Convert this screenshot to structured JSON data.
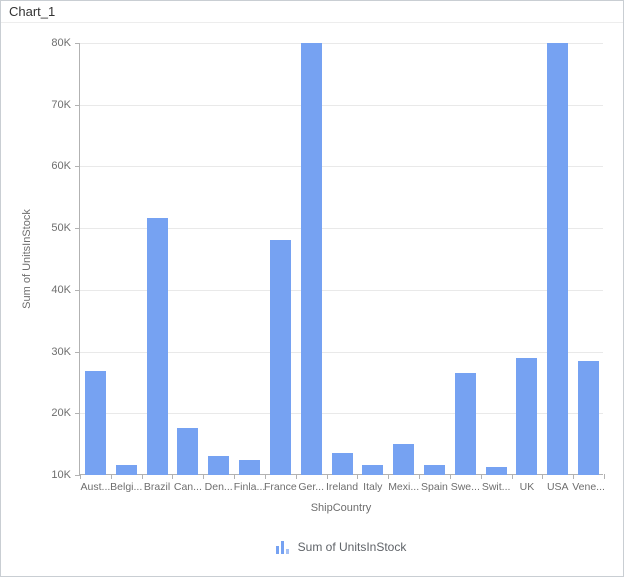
{
  "window": {
    "title": "Chart_1"
  },
  "chart_data": {
    "type": "bar",
    "title": "Chart_1",
    "categories": [
      "Austria",
      "Belgium",
      "Brazil",
      "Canada",
      "Denmark",
      "Finland",
      "France",
      "Germany",
      "Ireland",
      "Italy",
      "Mexico",
      "Spain",
      "Sweden",
      "Switzerland",
      "UK",
      "USA",
      "Venezuela"
    ],
    "category_labels": [
      "Aust...",
      "Belgi...",
      "Brazil",
      "Can...",
      "Den...",
      "Finla...",
      "France",
      "Ger...",
      "Ireland",
      "Italy",
      "Mexi...",
      "Spain",
      "Swe...",
      "Swit...",
      "UK",
      "USA",
      "Vene..."
    ],
    "values": [
      26900,
      11700,
      51600,
      17600,
      13000,
      12500,
      48100,
      80000,
      13600,
      11600,
      15000,
      11700,
      26500,
      11300,
      29000,
      80000,
      28400
    ],
    "xlabel": "ShipCountry",
    "ylabel": "Sum of UnitsInStock",
    "ylim": [
      10000,
      80000
    ],
    "yticks": [
      10000,
      20000,
      30000,
      40000,
      50000,
      60000,
      70000,
      80000
    ],
    "ytick_labels": [
      "10K",
      "20K",
      "30K",
      "40K",
      "50K",
      "60K",
      "70K",
      "80K"
    ],
    "grid": true,
    "legend": {
      "label": "Sum of UnitsInStock",
      "position": "bottom"
    },
    "bar_color": "#76a2f2"
  },
  "colors": {
    "bar": "#76a2f2",
    "legend_icon_light": "#a6c1f5",
    "axis_line": "#b2b2b2",
    "gridline": "#e9e9e9",
    "axis_text": "#6e6e6e",
    "title_text": "#333333",
    "widget_border": "#c9ced3"
  }
}
